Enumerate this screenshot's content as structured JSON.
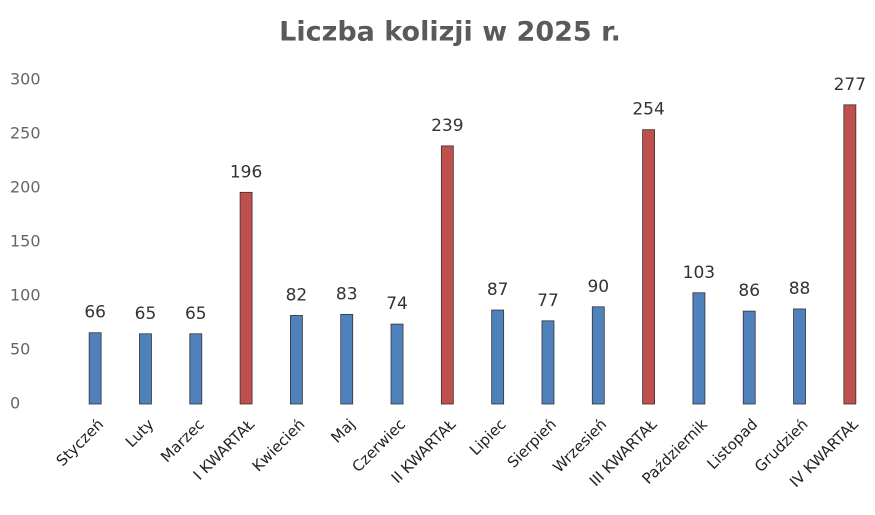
{
  "chart_data": {
    "type": "bar",
    "title": "Liczba kolizji w 2025 r.",
    "categories": [
      "Styczeń",
      "Luty",
      "Marzec",
      "I KWARTAŁ",
      "Kwiecień",
      "Maj",
      "Czerwiec",
      "II KWARTAŁ",
      "Lipiec",
      "Sierpień",
      "Wrzesień",
      "III KWARTAŁ",
      "Październik",
      "Listopad",
      "Grudzień",
      "IV KWARTAŁ"
    ],
    "values": [
      66,
      65,
      65,
      196,
      82,
      83,
      74,
      239,
      87,
      77,
      90,
      254,
      103,
      86,
      88,
      277
    ],
    "colors": [
      "#4f81bd",
      "#4f81bd",
      "#4f81bd",
      "#c0504d",
      "#4f81bd",
      "#4f81bd",
      "#4f81bd",
      "#c0504d",
      "#4f81bd",
      "#4f81bd",
      "#4f81bd",
      "#c0504d",
      "#4f81bd",
      "#4f81bd",
      "#4f81bd",
      "#c0504d"
    ],
    "ylim": [
      0,
      300
    ],
    "yticks": [
      0,
      50,
      100,
      150,
      200,
      250,
      300
    ],
    "grid": false
  }
}
